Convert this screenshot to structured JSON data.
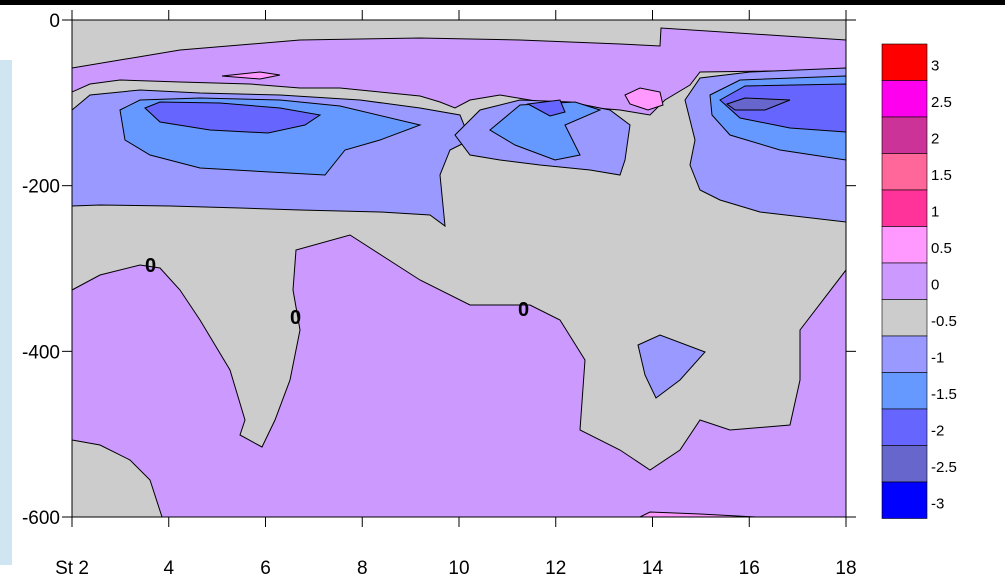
{
  "chart_data": {
    "type": "contour",
    "x_ticks": [
      2,
      4,
      6,
      8,
      10,
      12,
      14,
      16,
      18
    ],
    "x_tick_labels": [
      "St 2",
      "4",
      "6",
      "8",
      "10",
      "12",
      "14",
      "16",
      "18"
    ],
    "xlim": [
      2,
      18
    ],
    "y_ticks": [
      0,
      -200,
      -400,
      -600
    ],
    "y_tick_labels": [
      "0",
      "-200",
      "-400",
      "-600"
    ],
    "ylim": [
      -600,
      0
    ],
    "contour_labels": [
      "0",
      "0",
      "0"
    ],
    "colorbar": {
      "levels": [
        {
          "label": "3",
          "color": "#ff0000"
        },
        {
          "label": "2.5",
          "color": "#ff00ee"
        },
        {
          "label": "2",
          "color": "#cc3399"
        },
        {
          "label": "1.5",
          "color": "#ff6699"
        },
        {
          "label": "1",
          "color": "#ff3399"
        },
        {
          "label": "0.5",
          "color": "#ff99ff"
        },
        {
          "label": "0",
          "color": "#cc99ff"
        },
        {
          "label": "-0.5",
          "color": "#cccccc"
        },
        {
          "label": "-1",
          "color": "#9999ff"
        },
        {
          "label": "-1.5",
          "color": "#6699ff"
        },
        {
          "label": "-2",
          "color": "#6666ff"
        },
        {
          "label": "-2.5",
          "color": "#6666cc"
        },
        {
          "label": "-3",
          "color": "#0000ff"
        }
      ]
    }
  }
}
